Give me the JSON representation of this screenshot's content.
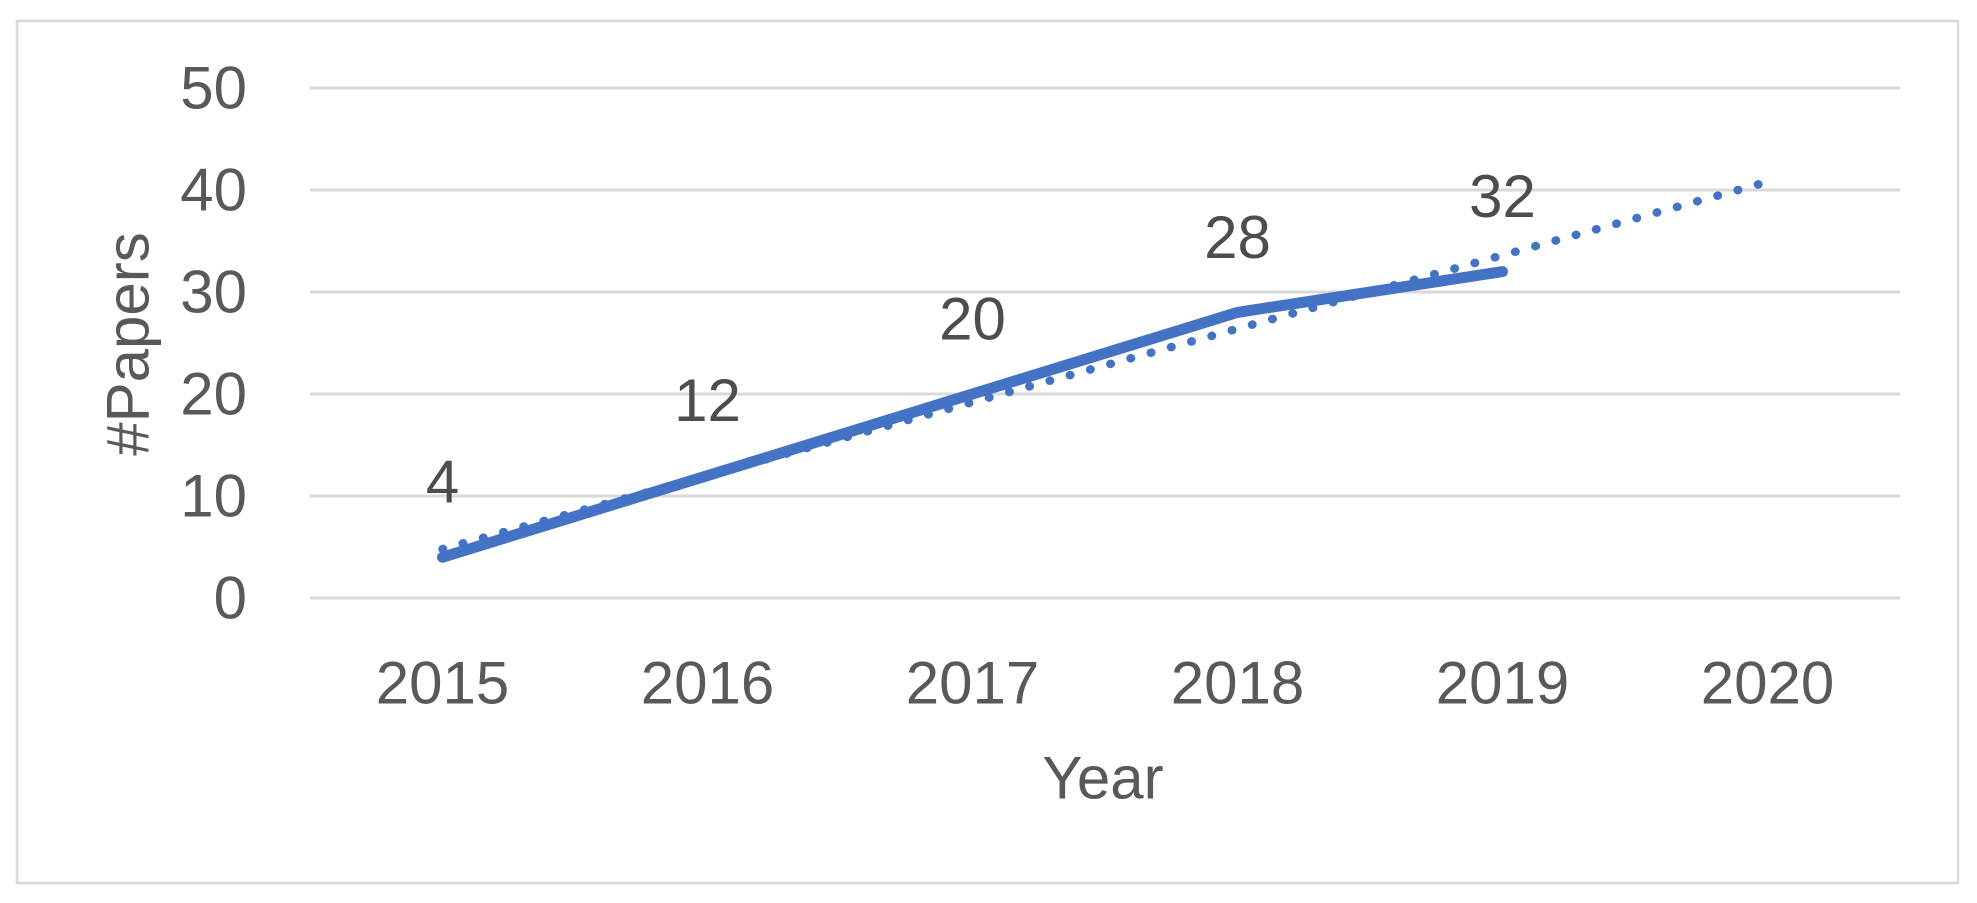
{
  "chart_data": {
    "type": "line",
    "title": "",
    "xlabel": "Year",
    "ylabel": "#Papers",
    "categories": [
      "2015",
      "2016",
      "2017",
      "2018",
      "2019",
      "2020"
    ],
    "series": [
      {
        "name": "#Papers",
        "style": "solid",
        "values": [
          4,
          12,
          20,
          28,
          32,
          null
        ],
        "data_labels": [
          "4",
          "12",
          "20",
          "28",
          "32"
        ]
      },
      {
        "name": "linear-trendline",
        "style": "dotted",
        "trend": {
          "start_x": "2015",
          "end_x": "2020",
          "start_value": 4.8,
          "end_value": 40.8,
          "slope_per_year": 7.2
        }
      }
    ],
    "y_ticks": [
      0,
      10,
      20,
      30,
      40,
      50
    ],
    "ylim": [
      0,
      50
    ],
    "grid": "horizontal",
    "legend_position": "none",
    "colors": {
      "series_line": "#4472c4",
      "trend_line": "#4472c4",
      "axis_text": "#595959",
      "data_label_text": "#4d4d4d",
      "gridline": "#d9d9d9",
      "chart_border": "#d9d9d9",
      "background": "#ffffff"
    }
  }
}
